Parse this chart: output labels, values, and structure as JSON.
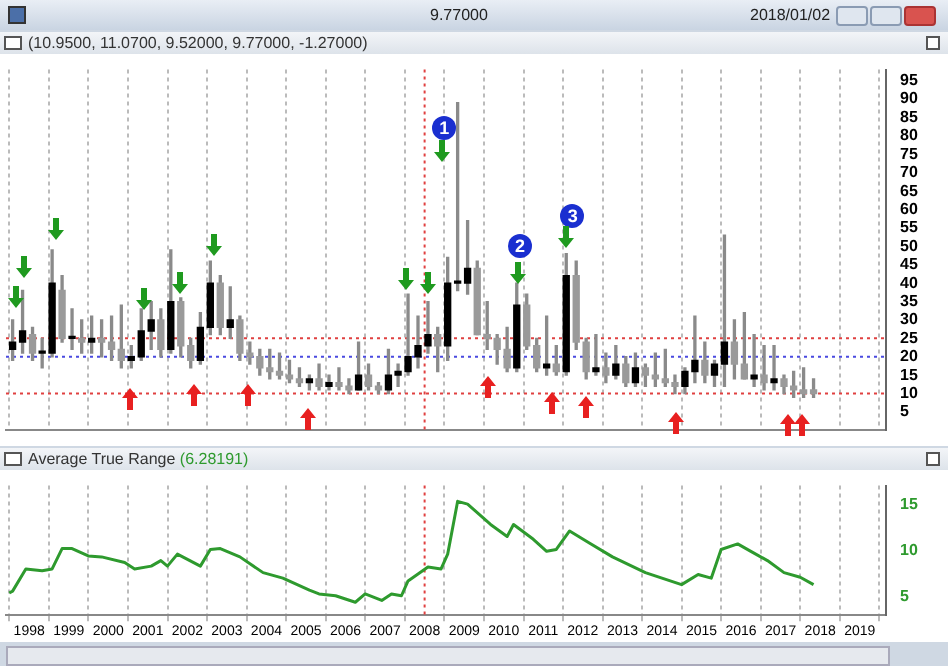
{
  "chart_data": [
    {
      "type": "candlestick",
      "title": "(10.9500, 11.0700, 9.52000, 9.77000, -1.27000)",
      "annotations": [
        "9.77000",
        "2018/01/02",
        {
          "text": "1",
          "x": "2008-07",
          "y": 82
        },
        {
          "text": "2",
          "x": "2010-06",
          "y": 50
        },
        {
          "text": "3",
          "x": "2011-10",
          "y": 58
        }
      ],
      "x": [
        "1997-08",
        "1997-11",
        "1998-02",
        "1998-05",
        "1998-08",
        "1998-11",
        "1999-02",
        "1999-05",
        "1999-08",
        "1999-11",
        "2000-02",
        "2000-05",
        "2000-08",
        "2000-11",
        "2001-02",
        "2001-05",
        "2001-08",
        "2001-11",
        "2002-02",
        "2002-05",
        "2002-08",
        "2002-11",
        "2003-02",
        "2003-05",
        "2003-08",
        "2003-11",
        "2004-02",
        "2004-05",
        "2004-08",
        "2004-11",
        "2005-02",
        "2005-05",
        "2005-08",
        "2005-11",
        "2006-02",
        "2006-05",
        "2006-08",
        "2006-11",
        "2007-02",
        "2007-05",
        "2007-08",
        "2007-11",
        "2008-02",
        "2008-05",
        "2008-08",
        "2008-11",
        "2009-02",
        "2009-05",
        "2009-08",
        "2009-11",
        "2010-02",
        "2010-05",
        "2010-08",
        "2010-11",
        "2011-02",
        "2011-05",
        "2011-08",
        "2011-11",
        "2012-02",
        "2012-05",
        "2012-08",
        "2012-11",
        "2013-02",
        "2013-05",
        "2013-08",
        "2013-11",
        "2014-02",
        "2014-05",
        "2014-08",
        "2014-11",
        "2015-02",
        "2015-05",
        "2015-08",
        "2015-11",
        "2016-02",
        "2016-05",
        "2016-08",
        "2016-11",
        "2017-02",
        "2017-05",
        "2017-08",
        "2017-11"
      ],
      "ohlc": [
        [
          22,
          30,
          19,
          24
        ],
        [
          24,
          38,
          21,
          27
        ],
        [
          26,
          28,
          19,
          21
        ],
        [
          21,
          25,
          17,
          21
        ],
        [
          21,
          49,
          20,
          40
        ],
        [
          38,
          42,
          24,
          25
        ],
        [
          25,
          33,
          22,
          25
        ],
        [
          25,
          30,
          21,
          24
        ],
        [
          24,
          31,
          21,
          25
        ],
        [
          25,
          30,
          20,
          24
        ],
        [
          24,
          31,
          19,
          22
        ],
        [
          22,
          34,
          17,
          19
        ],
        [
          19,
          23,
          17,
          20
        ],
        [
          20,
          33,
          19,
          27
        ],
        [
          27,
          35,
          22,
          30
        ],
        [
          30,
          33,
          20,
          22
        ],
        [
          22,
          49,
          21,
          35
        ],
        [
          35,
          36,
          20,
          23
        ],
        [
          23,
          25,
          17,
          19
        ],
        [
          19,
          32,
          18,
          28
        ],
        [
          28,
          46,
          26,
          40
        ],
        [
          40,
          42,
          26,
          28
        ],
        [
          28,
          39,
          25,
          30
        ],
        [
          30,
          31,
          19,
          21
        ],
        [
          21,
          24,
          18,
          20
        ],
        [
          20,
          22,
          15,
          17
        ],
        [
          17,
          22,
          14,
          16
        ],
        [
          16,
          21,
          14,
          15
        ],
        [
          15,
          19,
          13,
          14
        ],
        [
          14,
          17,
          12,
          13
        ],
        [
          13,
          15,
          11,
          14
        ],
        [
          14,
          18,
          11,
          12
        ],
        [
          12,
          15,
          11,
          13
        ],
        [
          13,
          17,
          11,
          12
        ],
        [
          12,
          14,
          10,
          11
        ],
        [
          11,
          24,
          11,
          15
        ],
        [
          15,
          18,
          11,
          12
        ],
        [
          12,
          13,
          10,
          11
        ],
        [
          11,
          22,
          10,
          15
        ],
        [
          15,
          18,
          12,
          16
        ],
        [
          16,
          37,
          15,
          20
        ],
        [
          20,
          31,
          17,
          23
        ],
        [
          23,
          35,
          21,
          26
        ],
        [
          26,
          28,
          16,
          23
        ],
        [
          23,
          47,
          19,
          40
        ],
        [
          40,
          89,
          38,
          40
        ],
        [
          40,
          57,
          37,
          44
        ],
        [
          44,
          46,
          26,
          26
        ],
        [
          26,
          35,
          22,
          25
        ],
        [
          25,
          26,
          18,
          22
        ],
        [
          22,
          28,
          16,
          17
        ],
        [
          17,
          40,
          16,
          34
        ],
        [
          34,
          37,
          22,
          23
        ],
        [
          23,
          25,
          16,
          17
        ],
        [
          17,
          31,
          15,
          18
        ],
        [
          18,
          23,
          15,
          16
        ],
        [
          16,
          48,
          15,
          42
        ],
        [
          42,
          46,
          22,
          24
        ],
        [
          24,
          25,
          14,
          16
        ],
        [
          16,
          26,
          15,
          17
        ],
        [
          17,
          21,
          13,
          15
        ],
        [
          15,
          23,
          14,
          18
        ],
        [
          18,
          20,
          12,
          13
        ],
        [
          13,
          21,
          12,
          17
        ],
        [
          17,
          18,
          12,
          15
        ],
        [
          15,
          21,
          12,
          14
        ],
        [
          14,
          22,
          12,
          13
        ],
        [
          13,
          15,
          10,
          12
        ],
        [
          12,
          17,
          10,
          16
        ],
        [
          16,
          31,
          13,
          19
        ],
        [
          19,
          24,
          13,
          15
        ],
        [
          15,
          19,
          12,
          18
        ],
        [
          18,
          53,
          12,
          24
        ],
        [
          24,
          30,
          14,
          18
        ],
        [
          18,
          32,
          14,
          14
        ],
        [
          14,
          26,
          12,
          15
        ],
        [
          15,
          23,
          11,
          13
        ],
        [
          13,
          23,
          11,
          14
        ],
        [
          14,
          15,
          10,
          12
        ],
        [
          12,
          16,
          9,
          11
        ],
        [
          11,
          17,
          9,
          10
        ],
        [
          11,
          14,
          9,
          10
        ]
      ],
      "xlim": [
        "1997-06",
        "2019-09"
      ],
      "xticks": [
        "1998",
        "1999",
        "2000",
        "2001",
        "2002",
        "2003",
        "2004",
        "2005",
        "2006",
        "2007",
        "2008",
        "2009",
        "2010",
        "2011",
        "2012",
        "2013",
        "2014",
        "2015",
        "2016",
        "2017",
        "2018",
        "2019"
      ],
      "ylim": [
        0,
        98
      ],
      "yticks": [
        5,
        10,
        15,
        20,
        25,
        30,
        35,
        40,
        45,
        50,
        55,
        60,
        65,
        70,
        75,
        80,
        85,
        90,
        95
      ],
      "tick_labels": "y",
      "grid": "x",
      "legend": false,
      "ref_lines": [
        {
          "axis": "y",
          "value": 25,
          "color": "#e04040",
          "line_style": "dotted"
        },
        {
          "axis": "y",
          "value": 20,
          "color": "#4a4ae0",
          "line_style": "dotted"
        },
        {
          "axis": "y",
          "value": 10,
          "color": "#e04040",
          "line_style": "dotted"
        },
        {
          "axis": "x",
          "value": "2008",
          "color": "#e04040",
          "line_style": "dotted"
        }
      ]
    },
    {
      "type": "line",
      "title": "Average True Range",
      "subtitle": "(6.28191)",
      "x": [
        "1997-07",
        "1997-08",
        "1997-12",
        "1998-05",
        "1998-08",
        "1998-11",
        "1999-02",
        "1999-07",
        "1999-11",
        "2000-06",
        "2000-09",
        "2001-02",
        "2001-05",
        "2001-07",
        "2001-10",
        "2002-05",
        "2002-08",
        "2002-11",
        "2003-05",
        "2003-12",
        "2004-06",
        "2005-02",
        "2005-05",
        "2005-10",
        "2006-04",
        "2006-07",
        "2006-12",
        "2007-03",
        "2007-06",
        "2007-08",
        "2008-02",
        "2008-06",
        "2008-08",
        "2008-11",
        "2009-02",
        "2009-09",
        "2010-02",
        "2010-04",
        "2010-10",
        "2011-02",
        "2011-05",
        "2011-09",
        "2012-03",
        "2012-10",
        "2013-08",
        "2014-01",
        "2014-07",
        "2014-12",
        "2015-04",
        "2015-07",
        "2015-12",
        "2016-04",
        "2016-09",
        "2017-02",
        "2017-07",
        "2017-11"
      ],
      "series": [
        {
          "color": "#2e9a2e",
          "values": [
            5.4,
            5.6,
            8.0,
            7.8,
            8.0,
            10.2,
            10.2,
            9.4,
            9.3,
            8.7,
            8.0,
            8.3,
            8.9,
            8.3,
            9.6,
            8.3,
            10.1,
            10.2,
            9.3,
            7.6,
            7.0,
            5.7,
            5.3,
            5.1,
            4.4,
            5.3,
            4.6,
            5.3,
            5.1,
            6.7,
            8.2,
            8.0,
            9.6,
            15.3,
            15.0,
            12.8,
            11.5,
            12.8,
            11.2,
            9.9,
            10.1,
            12.1,
            10.8,
            9.3,
            7.6,
            7.0,
            6.3,
            7.4,
            7.0,
            10.1,
            10.7,
            9.9,
            8.9,
            7.6,
            7.1,
            6.3
          ]
        }
      ],
      "xlim": [
        "1997-06",
        "2019-09"
      ],
      "xticks": [
        "1998",
        "1999",
        "2000",
        "2001",
        "2002",
        "2003",
        "2004",
        "2005",
        "2006",
        "2007",
        "2008",
        "2009",
        "2010",
        "2011",
        "2012",
        "2013",
        "2014",
        "2015",
        "2016",
        "2017",
        "2018",
        "2019"
      ],
      "ylim": [
        3,
        17
      ],
      "yticks": [
        5,
        10,
        15
      ],
      "grid": "x",
      "legend": false,
      "marker": "none",
      "line_style": "solid",
      "ref_lines": [
        {
          "axis": "x",
          "value": "2008",
          "color": "#e04040",
          "line_style": "dotted"
        }
      ]
    }
  ]
}
